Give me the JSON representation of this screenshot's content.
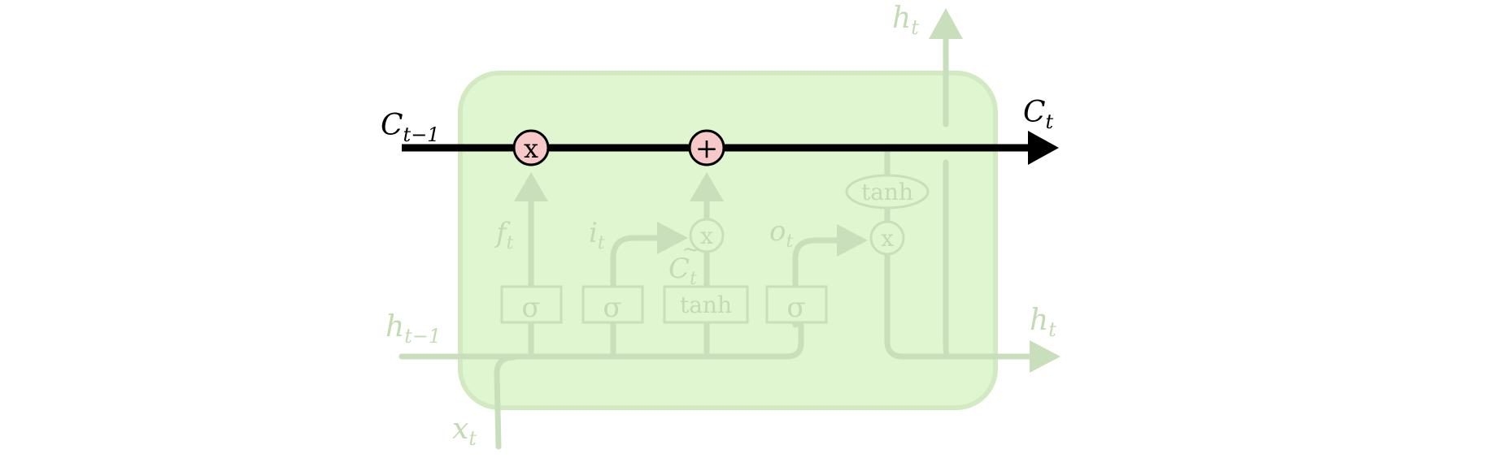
{
  "colors": {
    "cell_fill": "#e0f6d0",
    "cell_stroke": "#d2eac2",
    "faded": "#c9dfbb",
    "faded_text": "#c3dbb3",
    "highlight_line": "#000000",
    "pointwise_fill": "#f7c8c8"
  },
  "labels": {
    "c_prev": {
      "base": "C",
      "sub": "t−1"
    },
    "c_next": {
      "base": "C",
      "sub": "t"
    },
    "h_prev": {
      "base": "h",
      "sub": "t−1"
    },
    "h_out_right": {
      "base": "h",
      "sub": "t"
    },
    "h_out_top": {
      "base": "h",
      "sub": "t"
    },
    "x_in": {
      "base": "x",
      "sub": "t"
    },
    "f_gate": {
      "base": "f",
      "sub": "t"
    },
    "i_gate": {
      "base": "i",
      "sub": "t"
    },
    "o_gate": {
      "base": "o",
      "sub": "t"
    },
    "c_candidate": {
      "base": "C",
      "sub": "t",
      "accent": "~"
    }
  },
  "ops": {
    "multiply": "x",
    "add": "+",
    "sigma": "σ",
    "tanh": "tanh"
  },
  "icons": [
    "multiply-op-icon",
    "add-op-icon",
    "arrow-head-icon"
  ]
}
